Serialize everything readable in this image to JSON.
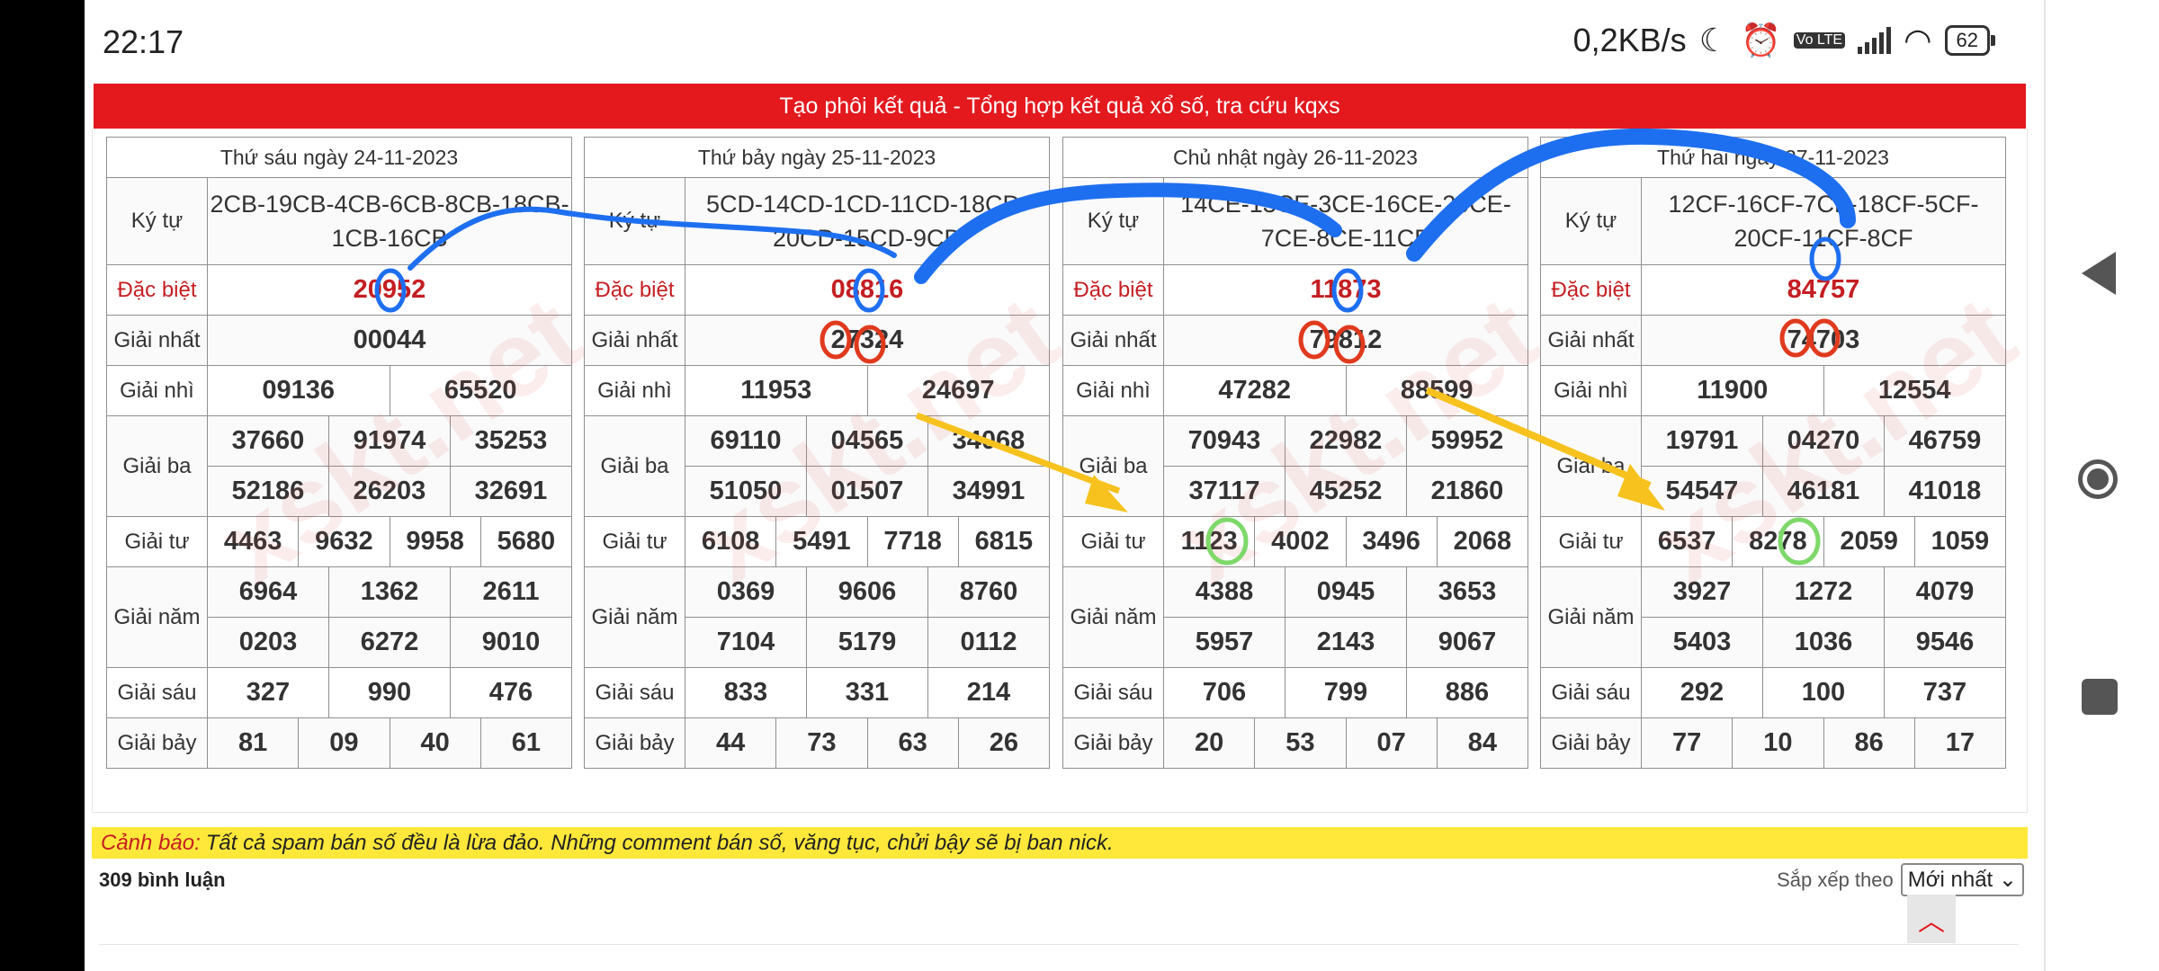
{
  "status_bar": {
    "time": "22:17",
    "network_speed": "0,2KB/s",
    "volte_label": "Vo LTE",
    "battery": "62"
  },
  "banner": "Tạo phôi kết quả - Tổng hợp kết quả xổ số, tra cứu kqxs",
  "watermark_text": "xskt.net",
  "labels": {
    "ky_tu": "Ký tự",
    "dac_biet": "Đặc biệt",
    "giai_nhat": "Giải nhất",
    "giai_nhi": "Giải nhì",
    "giai_ba": "Giải ba",
    "giai_tu": "Giải tư",
    "giai_nam": "Giải năm",
    "giai_sau": "Giải sáu",
    "giai_bay": "Giải bảy"
  },
  "tables": [
    {
      "date": "Thứ sáu ngày 24-11-2023",
      "ky_tu": [
        "2CB-19CB-4CB-6CB-8CB-18CB-",
        "1CB-16CB"
      ],
      "dac_biet": "20952",
      "giai_nhat": "00044",
      "giai_nhi": [
        "09136",
        "65520"
      ],
      "giai_ba": [
        [
          "37660",
          "91974",
          "35253"
        ],
        [
          "52186",
          "26203",
          "32691"
        ]
      ],
      "giai_tu": [
        "4463",
        "9632",
        "9958",
        "5680"
      ],
      "giai_nam": [
        [
          "6964",
          "1362",
          "2611"
        ],
        [
          "0203",
          "6272",
          "9010"
        ]
      ],
      "giai_sau": [
        "327",
        "990",
        "476"
      ],
      "giai_bay": [
        "81",
        "09",
        "40",
        "61"
      ]
    },
    {
      "date": "Thứ bảy ngày 25-11-2023",
      "ky_tu": [
        "5CD-14CD-1CD-11CD-18CD-",
        "20CD-15CD-9CD"
      ],
      "dac_biet": "08816",
      "giai_nhat": "27324",
      "giai_nhi": [
        "11953",
        "24697"
      ],
      "giai_ba": [
        [
          "69110",
          "04565",
          "34068"
        ],
        [
          "51050",
          "01507",
          "34991"
        ]
      ],
      "giai_tu": [
        "6108",
        "5491",
        "7718",
        "6815"
      ],
      "giai_nam": [
        [
          "0369",
          "9606",
          "8760"
        ],
        [
          "7104",
          "5179",
          "0112"
        ]
      ],
      "giai_sau": [
        "833",
        "331",
        "214"
      ],
      "giai_bay": [
        "44",
        "73",
        "63",
        "26"
      ]
    },
    {
      "date": "Chủ nhật ngày 26-11-2023",
      "ky_tu": [
        "14CE-13CE-3CE-16CE-20CE-",
        "7CE-8CE-11CE"
      ],
      "dac_biet": "11873",
      "giai_nhat": "79812",
      "giai_nhi": [
        "47282",
        "88599"
      ],
      "giai_ba": [
        [
          "70943",
          "22982",
          "59952"
        ],
        [
          "37117",
          "45252",
          "21860"
        ]
      ],
      "giai_tu": [
        "1123",
        "4002",
        "3496",
        "2068"
      ],
      "giai_nam": [
        [
          "4388",
          "0945",
          "3653"
        ],
        [
          "5957",
          "2143",
          "9067"
        ]
      ],
      "giai_sau": [
        "706",
        "799",
        "886"
      ],
      "giai_bay": [
        "20",
        "53",
        "07",
        "84"
      ]
    },
    {
      "date": "Thứ hai ngày 27-11-2023",
      "ky_tu": [
        "12CF-16CF-7CF-18CF-5CF-",
        "20CF-11CF-8CF"
      ],
      "dac_biet": "84757",
      "giai_nhat": "74703",
      "giai_nhi": [
        "11900",
        "12554"
      ],
      "giai_ba": [
        [
          "19791",
          "04270",
          "46759"
        ],
        [
          "54547",
          "46181",
          "41018"
        ]
      ],
      "giai_tu": [
        "6537",
        "8278",
        "2059",
        "1059"
      ],
      "giai_nam": [
        [
          "3927",
          "1272",
          "4079"
        ],
        [
          "5403",
          "1036",
          "9546"
        ]
      ],
      "giai_sau": [
        "292",
        "100",
        "737"
      ],
      "giai_bay": [
        "77",
        "10",
        "86",
        "17"
      ]
    }
  ],
  "warning": {
    "label": "Cảnh báo:",
    "text": "Tất cả spam bán số đều là lừa đảo. Những comment bán số, văng tục, chửi bậy sẽ bị ban nick."
  },
  "comments_count": "309 bình luận",
  "sort": {
    "label": "Sắp xếp theo",
    "selected": "Mới nhất"
  },
  "annotation_colors": {
    "blue": "#1e6ff0",
    "red": "#e03a1e",
    "yellow": "#f7c21d",
    "green": "#7ed96a"
  }
}
